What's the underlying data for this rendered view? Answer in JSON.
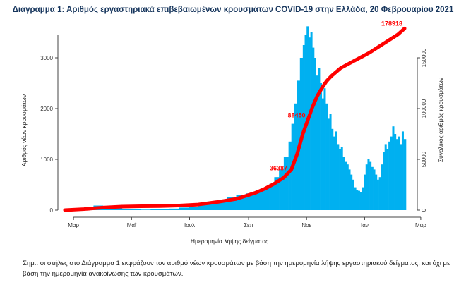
{
  "chart_data": {
    "type": "bar",
    "title": "Διάγραμμα 1: Αριθμός εργαστηριακά επιβεβαιωμένων κρουσμάτων COVID-19 στην Ελλάδα, 20 Φεβρουαρίου 2021",
    "xlabel": "Ημερομηνία λήψης δείγματος",
    "ylabel_left": "Αριθμός νέων κρουσμάτων",
    "ylabel_right": "Συνολικός αριθμός κρουσμάτων",
    "x_ticks": [
      "Μαρ",
      "Μαΐ",
      "Ιουλ",
      "Σεπ",
      "Νοε",
      "Ιαν",
      "Μαρ"
    ],
    "x_tick_days": [
      9,
      70,
      131,
      193,
      254,
      315,
      374
    ],
    "ylim_left": [
      0,
      3500
    ],
    "y_ticks_left": [
      0,
      1000,
      2000,
      3000
    ],
    "ylim_right": [
      0,
      175000
    ],
    "y_ticks_right": [
      0,
      50000,
      100000,
      150000
    ],
    "day_range": [
      0,
      357
    ],
    "series": [
      {
        "name": "",
        "kind": "bar",
        "color": "#00b0f0",
        "day": [
          0,
          10,
          20,
          30,
          40,
          50,
          60,
          70,
          80,
          90,
          100,
          110,
          120,
          130,
          140,
          150,
          160,
          170,
          180,
          190,
          195,
          200,
          205,
          210,
          215,
          220,
          225,
          230,
          235,
          238,
          241,
          244,
          247,
          250,
          252,
          254,
          256,
          258,
          260,
          262,
          264,
          266,
          268,
          270,
          272,
          274,
          276,
          278,
          280,
          282,
          284,
          286,
          288,
          290,
          292,
          294,
          296,
          298,
          300,
          302,
          304,
          306,
          308,
          310,
          312,
          314,
          316,
          318,
          320,
          322,
          324,
          326,
          328,
          330,
          332,
          334,
          336,
          338,
          340,
          342,
          344,
          346,
          348,
          350,
          352,
          354,
          356
        ],
        "value": [
          2,
          30,
          60,
          90,
          80,
          60,
          25,
          15,
          10,
          15,
          20,
          30,
          50,
          70,
          110,
          130,
          180,
          250,
          300,
          330,
          350,
          380,
          420,
          460,
          520,
          650,
          800,
          1050,
          1350,
          1700,
          2100,
          2550,
          3000,
          3250,
          3450,
          3620,
          3400,
          3500,
          3200,
          3000,
          2650,
          2800,
          2500,
          2200,
          2400,
          2100,
          1800,
          1900,
          1600,
          1450,
          1550,
          1300,
          1200,
          1250,
          1050,
          950,
          900,
          800,
          700,
          600,
          450,
          400,
          380,
          350,
          450,
          700,
          900,
          1000,
          950,
          850,
          800,
          700,
          600,
          650,
          900,
          1150,
          1300,
          1200,
          1350,
          1450,
          1650,
          1500,
          1400,
          1450,
          1300,
          1550,
          1400
        ]
      },
      {
        "name": "",
        "kind": "line",
        "axis": "right",
        "color": "#ff0000",
        "day": [
          0,
          20,
          40,
          60,
          80,
          100,
          120,
          140,
          160,
          180,
          190,
          200,
          210,
          220,
          230,
          238,
          244,
          250,
          255,
          260,
          265,
          270,
          275,
          280,
          285,
          290,
          300,
          310,
          320,
          330,
          340,
          350,
          357
        ],
        "value": [
          0,
          1000,
          2500,
          3500,
          3800,
          4000,
          4500,
          5500,
          8000,
          11000,
          14000,
          17000,
          21000,
          26000,
          32000,
          40000,
          55000,
          75000,
          88000,
          101000,
          112000,
          120000,
          127000,
          132000,
          136000,
          140000,
          145000,
          150000,
          155000,
          161000,
          167000,
          173000,
          178918
        ]
      }
    ],
    "annotations": [
      {
        "text": "178918",
        "day": 357,
        "value": 178918,
        "color": "#ff0000"
      },
      {
        "text": "88450",
        "day": 255,
        "value": 88450,
        "color": "#ff0000"
      },
      {
        "text": "36387",
        "day": 236,
        "value": 36387,
        "color": "#ff0000"
      }
    ]
  },
  "note": "Σημ.: οι στήλες στο Διάγραμμα 1 εκφράζουν τον αριθμό νέων κρουσμάτων με βάση την ημερομηνία λήψης εργαστηριακού δείγματος, και όχι με βάση την ημερομηνία ανακοίνωσης των κρουσμάτων."
}
